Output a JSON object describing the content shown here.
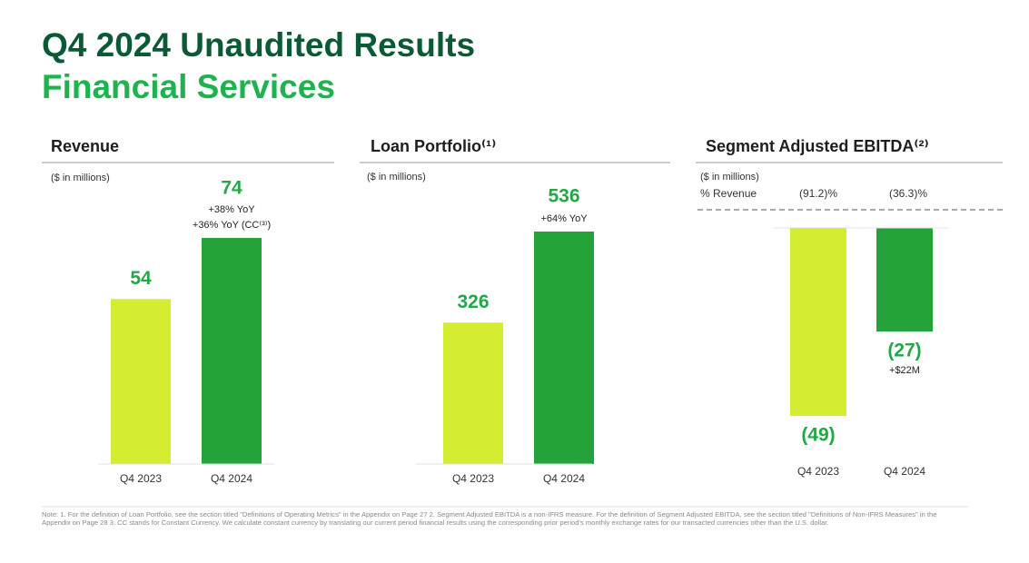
{
  "header": {
    "title": "Q4 2024 Unaudited Results",
    "subtitle": "Financial Services"
  },
  "chart_data": [
    {
      "type": "bar",
      "title": "Revenue",
      "unit_note": "($ in millions)",
      "categories": [
        "Q4 2023",
        "Q4 2024"
      ],
      "values": [
        54,
        74
      ],
      "colors": [
        "#d4ed31",
        "#24a33a"
      ],
      "annotations": [
        [],
        [
          "+38% YoY",
          "+36% YoY (CC⁽³⁾)"
        ]
      ]
    },
    {
      "type": "bar",
      "title": "Loan Portfolio⁽¹⁾",
      "unit_note": "($ in millions)",
      "categories": [
        "Q4 2023",
        "Q4 2024"
      ],
      "values": [
        326,
        536
      ],
      "colors": [
        "#d4ed31",
        "#24a33a"
      ],
      "annotations": [
        [],
        [
          "+64% YoY"
        ]
      ]
    },
    {
      "type": "bar",
      "title": "Segment Adjusted EBITDA⁽²⁾",
      "unit_note": "($ in millions)",
      "categories": [
        "Q4 2023",
        "Q4 2024"
      ],
      "values": [
        -49,
        -27
      ],
      "value_labels": [
        "(49)",
        "(27)"
      ],
      "colors": [
        "#d4ed31",
        "#24a33a"
      ],
      "annotations": [
        [],
        [
          "+$22M"
        ]
      ],
      "secondary_row": {
        "label": "% Revenue",
        "labels": [
          "(91.2)%",
          "(36.3)%"
        ]
      }
    }
  ],
  "note": "Note: 1. For the definition of Loan Portfolio, see the section titled \"Definitions of Operating Metrics\" in the Appendix on Page 27 2. Segment Adjusted EBITDA is a non-IFRS measure. For the definition of Segment Adjusted EBITDA, see the section titled \"Definitions of Non-IFRS Measures\" in the Appendix on Page 28 3. CC stands for Constant Currency. We calculate constant currency by translating our current period financial results using the corresponding prior period's monthly exchange rates for our transacted currencies other than the U.S. dollar."
}
